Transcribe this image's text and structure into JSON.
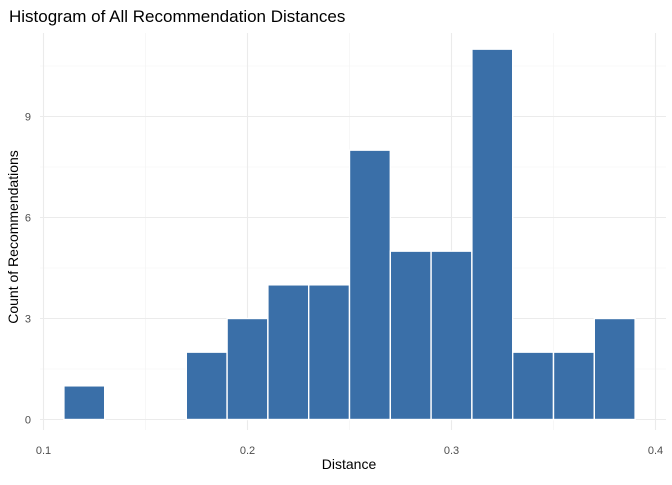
{
  "chart_data": {
    "type": "bar",
    "title": "Histogram of All Recommendation Distances",
    "xlabel": "Distance",
    "ylabel": "Count of Recommendations",
    "xlim": [
      0.1,
      0.4
    ],
    "ylim": [
      0,
      11
    ],
    "x_ticks": [
      "0.1",
      "0.2",
      "0.3",
      "0.4"
    ],
    "y_ticks": [
      "0",
      "3",
      "6",
      "9"
    ],
    "bin_width": 0.02,
    "bins": [
      {
        "start": 0.11,
        "end": 0.13,
        "count": 1
      },
      {
        "start": 0.13,
        "end": 0.15,
        "count": 0
      },
      {
        "start": 0.15,
        "end": 0.17,
        "count": 0
      },
      {
        "start": 0.17,
        "end": 0.19,
        "count": 2
      },
      {
        "start": 0.19,
        "end": 0.21,
        "count": 3
      },
      {
        "start": 0.21,
        "end": 0.23,
        "count": 4
      },
      {
        "start": 0.23,
        "end": 0.25,
        "count": 4
      },
      {
        "start": 0.25,
        "end": 0.27,
        "count": 8
      },
      {
        "start": 0.27,
        "end": 0.29,
        "count": 5
      },
      {
        "start": 0.29,
        "end": 0.31,
        "count": 5
      },
      {
        "start": 0.31,
        "end": 0.33,
        "count": 11
      },
      {
        "start": 0.33,
        "end": 0.35,
        "count": 2
      },
      {
        "start": 0.35,
        "end": 0.37,
        "count": 2
      },
      {
        "start": 0.37,
        "end": 0.39,
        "count": 3
      }
    ],
    "bar_color": "#3a6fa8",
    "bar_outline_color": "#ffffff",
    "grid": true,
    "legend": "none"
  }
}
